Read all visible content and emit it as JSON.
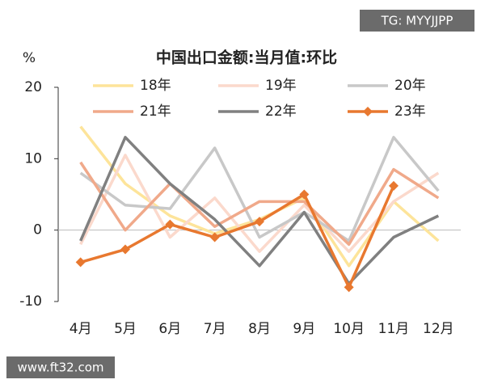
{
  "chart_data": {
    "type": "line",
    "title": "中国出口金额:当月值:环比",
    "y_unit": "%",
    "categories": [
      "4月",
      "5月",
      "6月",
      "7月",
      "8月",
      "9月",
      "10月",
      "11月",
      "12月"
    ],
    "series": [
      {
        "name": "18年",
        "color": "#fde49a",
        "values": [
          14.5,
          6.5,
          2,
          -0.5,
          1.5,
          4.5,
          -5,
          4,
          -1.5
        ]
      },
      {
        "name": "19年",
        "color": "#fbd9cc",
        "values": [
          -2,
          10.5,
          -1,
          4.5,
          -3,
          3.5,
          -3,
          4,
          8
        ]
      },
      {
        "name": "20年",
        "color": "#c8c8c8",
        "values": [
          8,
          3.5,
          3,
          11.5,
          -1,
          2.5,
          -1.5,
          13,
          5.5
        ]
      },
      {
        "name": "21年",
        "color": "#f0a98a",
        "values": [
          9.5,
          0,
          6.5,
          0.5,
          4,
          4,
          -2,
          8.5,
          4.5
        ]
      },
      {
        "name": "22年",
        "color": "#808080",
        "values": [
          -1.5,
          13,
          6.5,
          1.5,
          -5,
          2.5,
          -7.5,
          -1,
          2
        ]
      },
      {
        "name": "23年",
        "color": "#e8782f",
        "marker": "diamond",
        "values": [
          -4.5,
          -2.7,
          0.8,
          -1,
          1.2,
          5,
          -8,
          6.2,
          null
        ]
      }
    ],
    "ylim": [
      -10,
      20
    ],
    "yticks": [
      -10,
      0,
      10,
      20
    ],
    "zero_line": true
  },
  "watermarks": [
    "TG: MYYJJPP",
    "www.ft32.com"
  ]
}
